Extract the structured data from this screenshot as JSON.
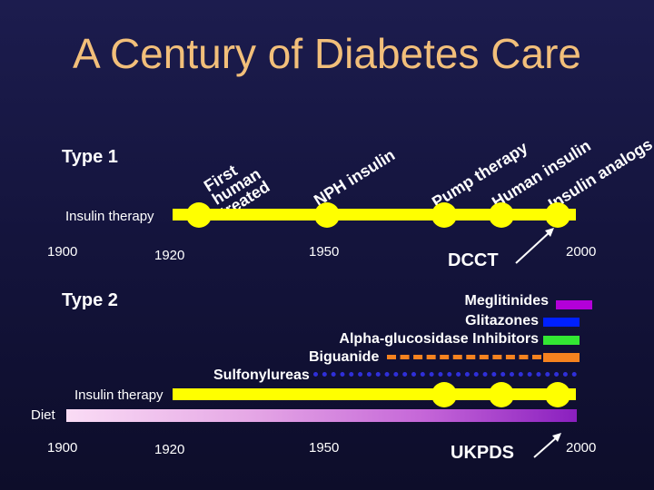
{
  "title": "A Century of Diabetes Care",
  "type1": {
    "label": "Type 1",
    "therapy_label": "Insulin therapy",
    "events": [
      "First human treated",
      "NPH insulin",
      "Pump therapy",
      "Human insulin",
      "Insulin analogs"
    ],
    "years": [
      "1900",
      "1920",
      "1950",
      "2000"
    ],
    "trial": "DCCT"
  },
  "type2": {
    "label": "Type 2",
    "therapy_label": "Insulin therapy",
    "diet_label": "Diet",
    "drugs": [
      {
        "name": "Meglitinides",
        "color": "#b300d9"
      },
      {
        "name": "Glitazones",
        "color": "#0020ff"
      },
      {
        "name": "Alpha-glucosidase Inhibitors",
        "color": "#33e633"
      },
      {
        "name": "Biguanide",
        "color": "#f5821f"
      },
      {
        "name": "Sulfonylureas",
        "color": "#2f2fd9"
      }
    ],
    "years": [
      "1900",
      "1920",
      "1950",
      "2000"
    ],
    "trial": "UKPDS"
  },
  "colors": {
    "title": "#f2bf7a",
    "timeline": "#ffff00",
    "background": "#15153f"
  }
}
